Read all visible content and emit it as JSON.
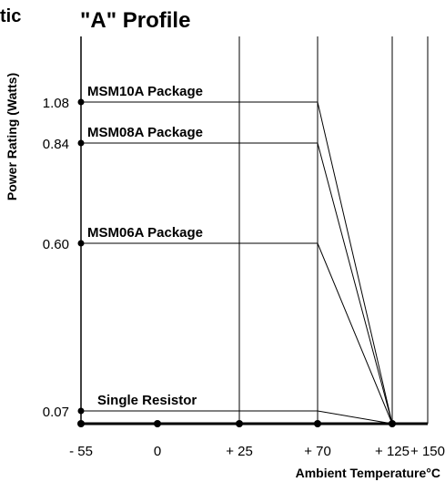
{
  "corner_label": "tic",
  "chart_data": {
    "type": "line",
    "title": "\"A\" Profile",
    "xlabel": "Ambient Temperature°C",
    "ylabel": "Power Rating (Watts)",
    "x_ticks": [
      {
        "value": -55,
        "label": "- 55"
      },
      {
        "value": 0,
        "label": "0"
      },
      {
        "value": 25,
        "label": "+ 25"
      },
      {
        "value": 70,
        "label": "+ 70"
      },
      {
        "value": 125,
        "label": "+ 125"
      },
      {
        "value": 150,
        "label": "+ 150"
      }
    ],
    "y_ticks": [
      {
        "value": 1.08,
        "label": "1.08"
      },
      {
        "value": 0.84,
        "label": "0.84"
      },
      {
        "value": 0.6,
        "label": "0.60"
      },
      {
        "value": 0.07,
        "label": "0.07"
      }
    ],
    "xlim": [
      -55,
      150
    ],
    "ylim": [
      0,
      1.08
    ],
    "grid": true,
    "series": [
      {
        "name": "MSM10A Package",
        "x": [
          -55,
          70,
          125
        ],
        "y": [
          1.08,
          1.08,
          0
        ]
      },
      {
        "name": "MSM08A Package",
        "x": [
          -55,
          70,
          125
        ],
        "y": [
          0.84,
          0.84,
          0
        ]
      },
      {
        "name": "MSM06A Package",
        "x": [
          -55,
          70,
          125
        ],
        "y": [
          0.6,
          0.6,
          0
        ]
      },
      {
        "name": "Single Resistor",
        "x": [
          -55,
          70,
          125
        ],
        "y": [
          0.07,
          0.07,
          0
        ]
      }
    ],
    "axis_points_x": [
      -55,
      0,
      25,
      70,
      125
    ]
  }
}
